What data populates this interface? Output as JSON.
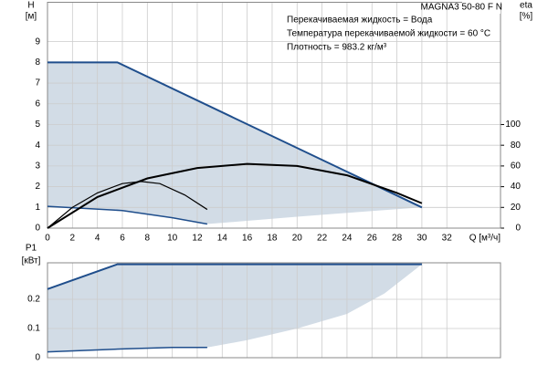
{
  "chart_data": [
    {
      "type": "line",
      "title": "MAGNA3 50-80 F N",
      "annotations": [
        "Перекачиваемая жидкость = Вода",
        "Температура перекачиваемой жидкости = 60 °C",
        "Плотность = 983.2 кг/м³"
      ],
      "y_label": "H",
      "y_unit": "[м]",
      "y2_label": "eta",
      "y2_unit": "[%]",
      "x_label": "Q [м³/ч]",
      "xlim": [
        0,
        36.3
      ],
      "xticks": [
        0,
        2,
        4,
        6,
        8,
        10,
        12,
        14,
        16,
        18,
        20,
        22,
        24,
        26,
        28,
        30,
        32
      ],
      "ylim": [
        0,
        10.9
      ],
      "yticks": [
        0,
        1,
        2,
        3,
        4,
        5,
        6,
        7,
        8,
        9
      ],
      "y2lim": [
        0,
        218
      ],
      "y2ticks": [
        0,
        20,
        40,
        60,
        80,
        100
      ],
      "grid": true,
      "area": {
        "color": "#d2dce6",
        "x": [
          0,
          5.6,
          30,
          25,
          20,
          16,
          12.8,
          10,
          6,
          0
        ],
        "values": [
          8,
          8,
          1,
          0.78,
          0.55,
          0.35,
          0.2,
          0.5,
          0.85,
          1.05
        ]
      },
      "series": [
        {
          "color": "#1f4e8c",
          "width": 2,
          "x": [
            0,
            5.6,
            30
          ],
          "values": [
            8,
            8,
            1
          ]
        },
        {
          "color": "#1f4e8c",
          "width": 1.5,
          "x": [
            0,
            6,
            10,
            12.8
          ],
          "values": [
            1.05,
            0.85,
            0.5,
            0.2
          ]
        },
        {
          "color": "#000000",
          "width": 1.2,
          "axis": "y2",
          "x": [
            0,
            2,
            4,
            6,
            7.5,
            9,
            11,
            12.8
          ],
          "values": [
            0,
            20,
            34,
            43,
            45,
            43,
            32,
            18
          ]
        },
        {
          "color": "#000000",
          "width": 2,
          "axis": "y2",
          "x": [
            0,
            4,
            8,
            12,
            16,
            20,
            24,
            28,
            30
          ],
          "values": [
            0,
            30,
            48,
            58,
            62,
            60,
            51,
            34,
            24
          ]
        }
      ]
    },
    {
      "type": "line",
      "y_label": "P1",
      "y_unit": "[кВт]",
      "xlim": [
        0,
        36.3
      ],
      "xticks": [
        0,
        2,
        4,
        6,
        8,
        10,
        12,
        14,
        16,
        18,
        20,
        22,
        24,
        26,
        28,
        30,
        32
      ],
      "xtick_labels": false,
      "ylim": [
        0,
        0.325
      ],
      "yticks": [
        0,
        0.1,
        0.2
      ],
      "grid": true,
      "area": {
        "color": "#d2dce6",
        "x": [
          0,
          5.6,
          30,
          27,
          24,
          20,
          16,
          12.8,
          10,
          6,
          0
        ],
        "values": [
          0.235,
          0.32,
          0.32,
          0.22,
          0.15,
          0.1,
          0.06,
          0.035,
          0.035,
          0.03,
          0.02
        ]
      },
      "series": [
        {
          "color": "#1f4e8c",
          "width": 2,
          "x": [
            0,
            5.6,
            30
          ],
          "values": [
            0.235,
            0.32,
            0.32
          ]
        },
        {
          "color": "#1f4e8c",
          "width": 1.5,
          "x": [
            0,
            6,
            10,
            12.8
          ],
          "values": [
            0.02,
            0.03,
            0.035,
            0.035
          ]
        }
      ]
    }
  ]
}
